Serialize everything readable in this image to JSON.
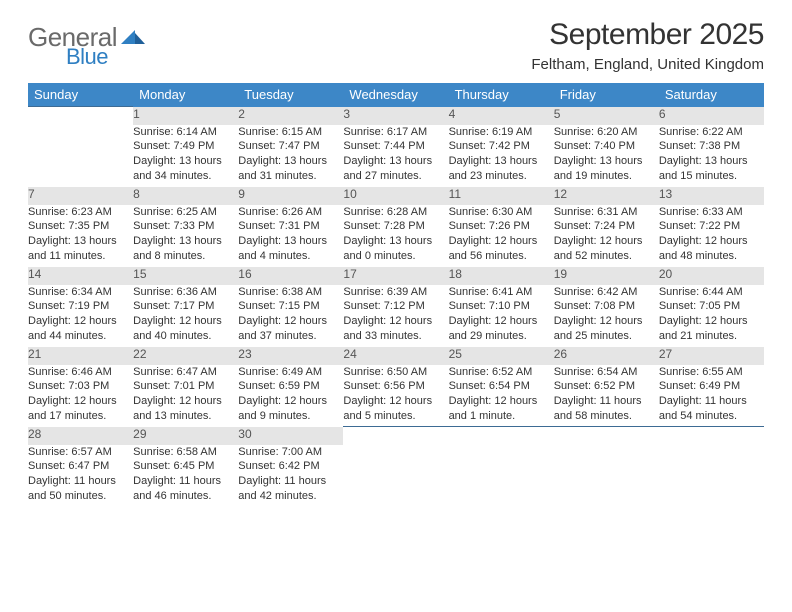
{
  "brand": {
    "part1": "General",
    "part2": "Blue"
  },
  "title": "September 2025",
  "location": "Feltham, England, United Kingdom",
  "colors": {
    "header_bg": "#3d87c7",
    "header_text": "#ffffff",
    "daynum_bg": "#e5e5e5",
    "row_border": "#3d6b94",
    "logo_gray": "#6a6a6a",
    "logo_blue": "#2f7fc2",
    "page_bg": "#ffffff",
    "text": "#333333"
  },
  "day_headers": [
    "Sunday",
    "Monday",
    "Tuesday",
    "Wednesday",
    "Thursday",
    "Friday",
    "Saturday"
  ],
  "weeks": [
    {
      "nums": [
        "",
        "1",
        "2",
        "3",
        "4",
        "5",
        "6"
      ],
      "cells": [
        null,
        {
          "sunrise": "Sunrise: 6:14 AM",
          "sunset": "Sunset: 7:49 PM",
          "daylight": "Daylight: 13 hours and 34 minutes."
        },
        {
          "sunrise": "Sunrise: 6:15 AM",
          "sunset": "Sunset: 7:47 PM",
          "daylight": "Daylight: 13 hours and 31 minutes."
        },
        {
          "sunrise": "Sunrise: 6:17 AM",
          "sunset": "Sunset: 7:44 PM",
          "daylight": "Daylight: 13 hours and 27 minutes."
        },
        {
          "sunrise": "Sunrise: 6:19 AM",
          "sunset": "Sunset: 7:42 PM",
          "daylight": "Daylight: 13 hours and 23 minutes."
        },
        {
          "sunrise": "Sunrise: 6:20 AM",
          "sunset": "Sunset: 7:40 PM",
          "daylight": "Daylight: 13 hours and 19 minutes."
        },
        {
          "sunrise": "Sunrise: 6:22 AM",
          "sunset": "Sunset: 7:38 PM",
          "daylight": "Daylight: 13 hours and 15 minutes."
        }
      ]
    },
    {
      "nums": [
        "7",
        "8",
        "9",
        "10",
        "11",
        "12",
        "13"
      ],
      "cells": [
        {
          "sunrise": "Sunrise: 6:23 AM",
          "sunset": "Sunset: 7:35 PM",
          "daylight": "Daylight: 13 hours and 11 minutes."
        },
        {
          "sunrise": "Sunrise: 6:25 AM",
          "sunset": "Sunset: 7:33 PM",
          "daylight": "Daylight: 13 hours and 8 minutes."
        },
        {
          "sunrise": "Sunrise: 6:26 AM",
          "sunset": "Sunset: 7:31 PM",
          "daylight": "Daylight: 13 hours and 4 minutes."
        },
        {
          "sunrise": "Sunrise: 6:28 AM",
          "sunset": "Sunset: 7:28 PM",
          "daylight": "Daylight: 13 hours and 0 minutes."
        },
        {
          "sunrise": "Sunrise: 6:30 AM",
          "sunset": "Sunset: 7:26 PM",
          "daylight": "Daylight: 12 hours and 56 minutes."
        },
        {
          "sunrise": "Sunrise: 6:31 AM",
          "sunset": "Sunset: 7:24 PM",
          "daylight": "Daylight: 12 hours and 52 minutes."
        },
        {
          "sunrise": "Sunrise: 6:33 AM",
          "sunset": "Sunset: 7:22 PM",
          "daylight": "Daylight: 12 hours and 48 minutes."
        }
      ]
    },
    {
      "nums": [
        "14",
        "15",
        "16",
        "17",
        "18",
        "19",
        "20"
      ],
      "cells": [
        {
          "sunrise": "Sunrise: 6:34 AM",
          "sunset": "Sunset: 7:19 PM",
          "daylight": "Daylight: 12 hours and 44 minutes."
        },
        {
          "sunrise": "Sunrise: 6:36 AM",
          "sunset": "Sunset: 7:17 PM",
          "daylight": "Daylight: 12 hours and 40 minutes."
        },
        {
          "sunrise": "Sunrise: 6:38 AM",
          "sunset": "Sunset: 7:15 PM",
          "daylight": "Daylight: 12 hours and 37 minutes."
        },
        {
          "sunrise": "Sunrise: 6:39 AM",
          "sunset": "Sunset: 7:12 PM",
          "daylight": "Daylight: 12 hours and 33 minutes."
        },
        {
          "sunrise": "Sunrise: 6:41 AM",
          "sunset": "Sunset: 7:10 PM",
          "daylight": "Daylight: 12 hours and 29 minutes."
        },
        {
          "sunrise": "Sunrise: 6:42 AM",
          "sunset": "Sunset: 7:08 PM",
          "daylight": "Daylight: 12 hours and 25 minutes."
        },
        {
          "sunrise": "Sunrise: 6:44 AM",
          "sunset": "Sunset: 7:05 PM",
          "daylight": "Daylight: 12 hours and 21 minutes."
        }
      ]
    },
    {
      "nums": [
        "21",
        "22",
        "23",
        "24",
        "25",
        "26",
        "27"
      ],
      "cells": [
        {
          "sunrise": "Sunrise: 6:46 AM",
          "sunset": "Sunset: 7:03 PM",
          "daylight": "Daylight: 12 hours and 17 minutes."
        },
        {
          "sunrise": "Sunrise: 6:47 AM",
          "sunset": "Sunset: 7:01 PM",
          "daylight": "Daylight: 12 hours and 13 minutes."
        },
        {
          "sunrise": "Sunrise: 6:49 AM",
          "sunset": "Sunset: 6:59 PM",
          "daylight": "Daylight: 12 hours and 9 minutes."
        },
        {
          "sunrise": "Sunrise: 6:50 AM",
          "sunset": "Sunset: 6:56 PM",
          "daylight": "Daylight: 12 hours and 5 minutes."
        },
        {
          "sunrise": "Sunrise: 6:52 AM",
          "sunset": "Sunset: 6:54 PM",
          "daylight": "Daylight: 12 hours and 1 minute."
        },
        {
          "sunrise": "Sunrise: 6:54 AM",
          "sunset": "Sunset: 6:52 PM",
          "daylight": "Daylight: 11 hours and 58 minutes."
        },
        {
          "sunrise": "Sunrise: 6:55 AM",
          "sunset": "Sunset: 6:49 PM",
          "daylight": "Daylight: 11 hours and 54 minutes."
        }
      ]
    },
    {
      "nums": [
        "28",
        "29",
        "30",
        "",
        "",
        "",
        ""
      ],
      "cells": [
        {
          "sunrise": "Sunrise: 6:57 AM",
          "sunset": "Sunset: 6:47 PM",
          "daylight": "Daylight: 11 hours and 50 minutes."
        },
        {
          "sunrise": "Sunrise: 6:58 AM",
          "sunset": "Sunset: 6:45 PM",
          "daylight": "Daylight: 11 hours and 46 minutes."
        },
        {
          "sunrise": "Sunrise: 7:00 AM",
          "sunset": "Sunset: 6:42 PM",
          "daylight": "Daylight: 11 hours and 42 minutes."
        },
        null,
        null,
        null,
        null
      ]
    }
  ]
}
